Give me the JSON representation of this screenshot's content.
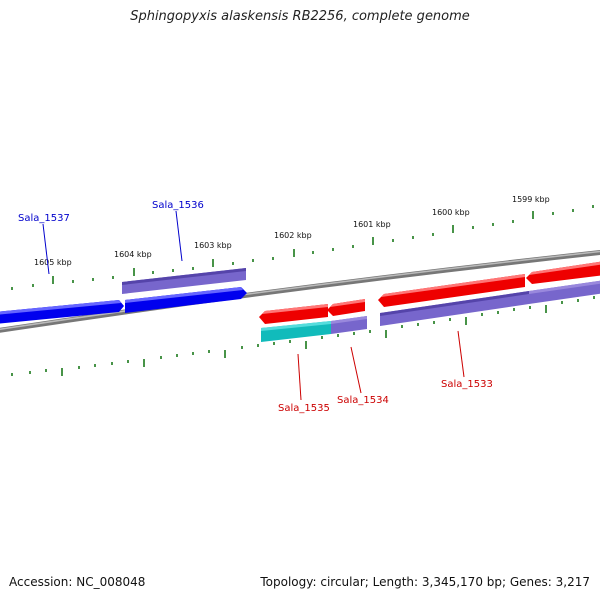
{
  "title": "Sphingopyxis alaskensis RB2256, complete genome",
  "footer": {
    "accession": "Accession: NC_008048",
    "summary": "Topology: circular; Length: 3,345,170 bp; Genes: 3,217"
  },
  "scale_labels": [
    "1599 kbp",
    "1600 kbp",
    "1601 kbp",
    "1602 kbp",
    "1603 kbp",
    "1604 kbp",
    "1605 kbp"
  ],
  "gene_labels": [
    {
      "name": "Sala_1537",
      "color": "#0000cc"
    },
    {
      "name": "Sala_1536",
      "color": "#0000cc"
    },
    {
      "name": "Sala_1535",
      "color": "#cc0000"
    },
    {
      "name": "Sala_1534",
      "color": "#cc0000"
    },
    {
      "name": "Sala_1533",
      "color": "#cc0000"
    }
  ],
  "colors": {
    "forward_gene": "#0000ee",
    "reverse_gene": "#ee0000",
    "protein_feature": "#7766cc",
    "rna_feature": "#11bbbb",
    "backbone": "#888888",
    "scale_ticks": "#1a7a1a"
  }
}
